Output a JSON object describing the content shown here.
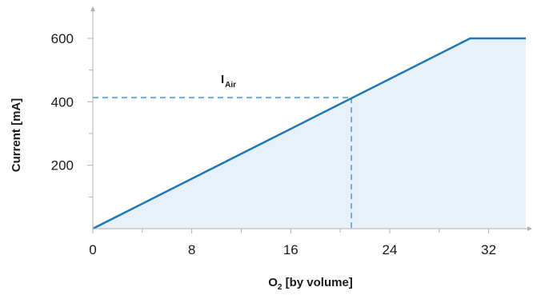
{
  "chart_data": {
    "type": "area",
    "xlabel": {
      "main": "O",
      "sub": "2",
      "rest": " [by volume]"
    },
    "ylabel": "Current [mA]",
    "xlim": [
      0,
      35
    ],
    "ylim": [
      0,
      600
    ],
    "x_ticks": [
      0,
      8,
      16,
      24,
      32
    ],
    "x_tick_labels": [
      "0",
      "8",
      "16",
      "24",
      "32"
    ],
    "y_ticks": [
      200,
      400,
      600
    ],
    "y_tick_labels": [
      "200",
      "400",
      "600"
    ],
    "y_minor_ticks": [
      100,
      300,
      500
    ],
    "x_minor_ticks": [
      4,
      12,
      20,
      28
    ],
    "series": [
      {
        "x": [
          0,
          30.5,
          35
        ],
        "y": [
          0,
          600,
          600
        ]
      }
    ],
    "reference": {
      "label_main": "I",
      "label_sub": "Air",
      "x": 20.9,
      "y": 413
    },
    "grid": false,
    "colors": {
      "line": "#1f77b4",
      "fill": "#e8f0f8",
      "reference": "#6baed6",
      "axis": "#b0b0b0"
    }
  }
}
